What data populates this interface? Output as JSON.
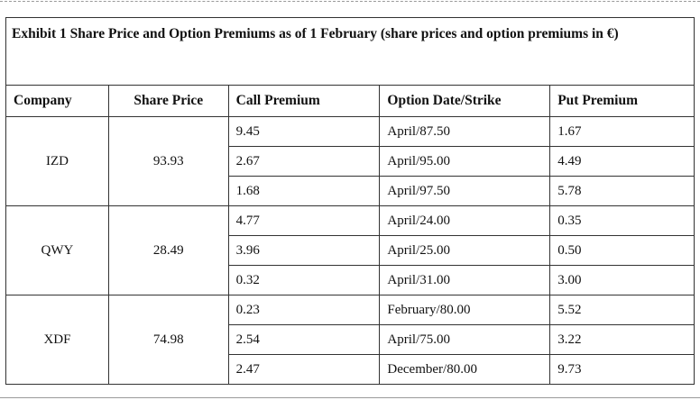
{
  "caption": "Exhibit 1 Share Price and Option Premiums as of 1 February (share prices and option premiums in €)",
  "headers": [
    "Company",
    "Share Price",
    "Call Premium",
    "Option Date/Strike",
    "Put Premium"
  ],
  "groups": [
    {
      "company": "IZD",
      "share_price": "93.93",
      "rows": [
        {
          "call": "9.45",
          "option": "April/87.50",
          "put": "1.67"
        },
        {
          "call": "2.67",
          "option": "April/95.00",
          "put": "4.49"
        },
        {
          "call": "1.68",
          "option": "April/97.50",
          "put": "5.78"
        }
      ]
    },
    {
      "company": "QWY",
      "share_price": "28.49",
      "rows": [
        {
          "call": "4.77",
          "option": "April/24.00",
          "put": "0.35"
        },
        {
          "call": "3.96",
          "option": "April/25.00",
          "put": "0.50"
        },
        {
          "call": "0.32",
          "option": "April/31.00",
          "put": "3.00"
        }
      ]
    },
    {
      "company": "XDF",
      "share_price": "74.98",
      "rows": [
        {
          "call": "0.23",
          "option": "February/80.00",
          "put": "5.52"
        },
        {
          "call": "2.54",
          "option": "April/75.00",
          "put": "3.22"
        },
        {
          "call": "2.47",
          "option": "December/80.00",
          "put": "9.73"
        }
      ]
    }
  ]
}
